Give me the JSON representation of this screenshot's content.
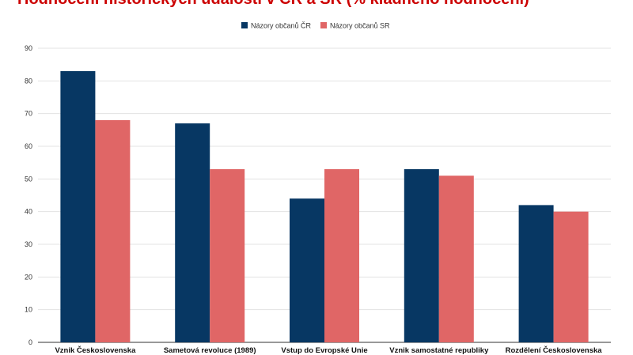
{
  "chart_data": {
    "type": "bar",
    "title": "Hodnocení historických událostí v ČR a SR (% kladného hodnocení)",
    "categories": [
      "Vznik Československa",
      "Sametová revoluce (1989)",
      "Vstup do Evropské Unie",
      "Vznik samostatné republiky",
      "Rozdělení Československa"
    ],
    "series": [
      {
        "name": "Názory občanů ČR",
        "color": "#073763",
        "values": [
          83,
          67,
          44,
          53,
          42
        ]
      },
      {
        "name": "Názory občanů SR",
        "color": "#e06666",
        "values": [
          68,
          53,
          53,
          51,
          40
        ]
      }
    ],
    "ylim": [
      0,
      90
    ],
    "yticks": [
      0,
      10,
      20,
      30,
      40,
      50,
      60,
      70,
      80,
      90
    ],
    "xlabel": "",
    "ylabel": "",
    "grid": true,
    "legend": "top-center"
  }
}
